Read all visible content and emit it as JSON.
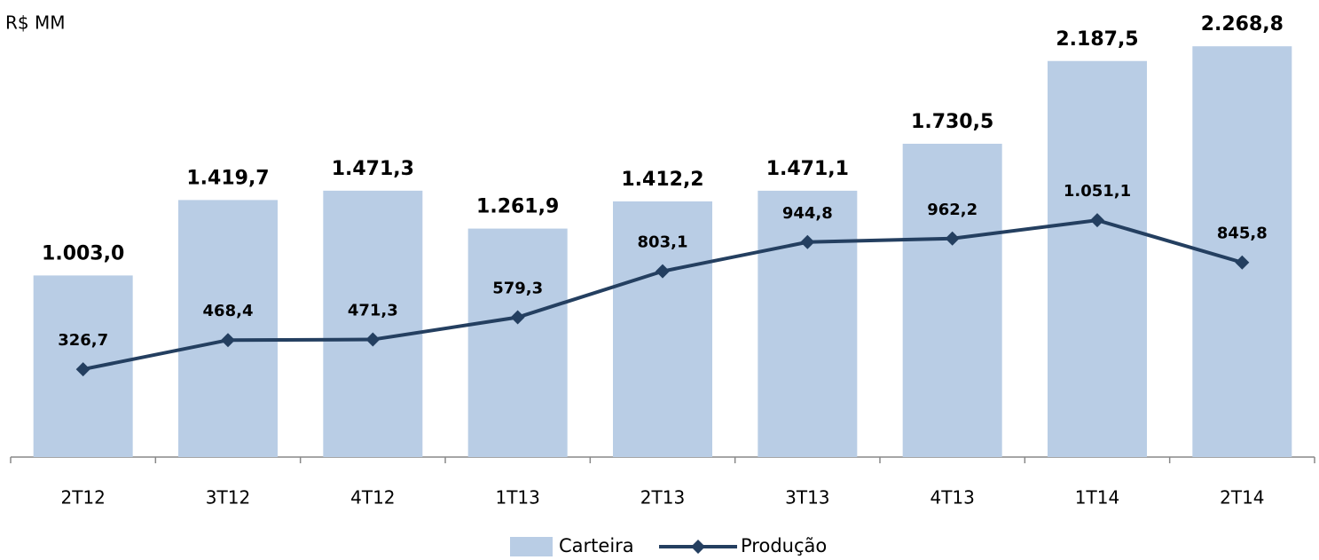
{
  "chart_data": {
    "type": "bar-line",
    "y_label": "R$ MM",
    "categories": [
      "2T12",
      "3T12",
      "4T12",
      "1T13",
      "2T13",
      "3T13",
      "4T13",
      "1T14",
      "2T14"
    ],
    "ylim": [
      0,
      2500
    ],
    "y2lim": [
      -100,
      2100
    ],
    "series": [
      {
        "name": "Carteira",
        "type": "bar",
        "color": "#b9cde5",
        "values": [
          1003.0,
          1419.7,
          1471.3,
          1261.9,
          1412.2,
          1471.1,
          1730.5,
          2187.5,
          2268.8
        ],
        "value_labels": [
          "1.003,0",
          "1.419,7",
          "1.471,3",
          "1.261,9",
          "1.412,2",
          "1.471,1",
          "1.730,5",
          "2.187,5",
          "2.268,8"
        ]
      },
      {
        "name": "Produção",
        "type": "line",
        "axis": "y2",
        "color": "#243f60",
        "values": [
          326.7,
          468.4,
          471.3,
          579.3,
          803.1,
          944.8,
          962.2,
          1051.1,
          845.8
        ],
        "value_labels": [
          "326,7",
          "468,4",
          "471,3",
          "579,3",
          "803,1",
          "944,8",
          "962,2",
          "1.051,1",
          "845,8"
        ]
      }
    ]
  }
}
